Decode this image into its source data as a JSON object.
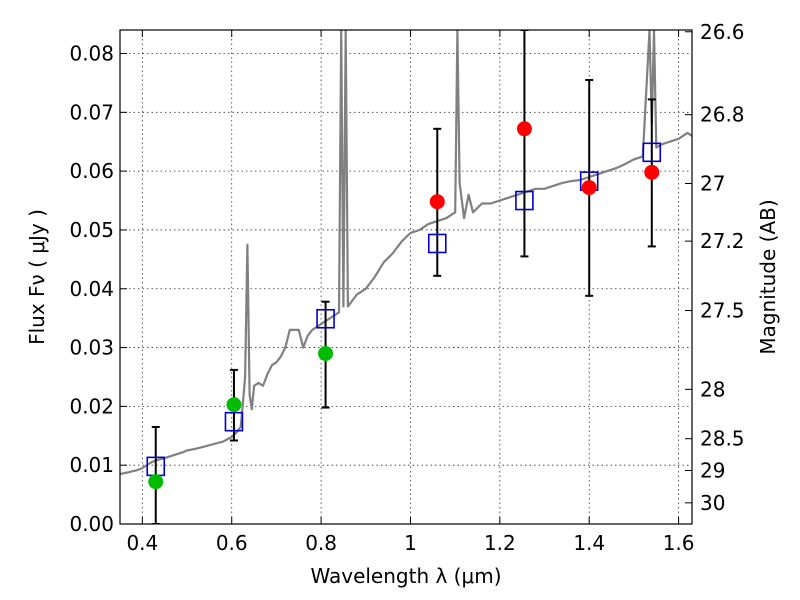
{
  "chart_data": {
    "type": "scatter",
    "xlabel": "Wavelength  λ (μm)",
    "ylabel": "Flux  Fν  ( μJy )",
    "y2label": "Magnitude (AB)",
    "xlim": [
      0.35,
      1.63
    ],
    "ylim": [
      0.0,
      0.084
    ],
    "x_ticks": [
      "0.4",
      "0.6",
      "0.8",
      "1",
      "1.2",
      "1.4",
      "1.6"
    ],
    "x_tick_values": [
      0.4,
      0.6,
      0.8,
      1.0,
      1.2,
      1.4,
      1.6
    ],
    "y_ticks": [
      "0.00",
      "0.01",
      "0.02",
      "0.03",
      "0.04",
      "0.05",
      "0.06",
      "0.07",
      "0.08"
    ],
    "y_tick_values": [
      0.0,
      0.01,
      0.02,
      0.03,
      0.04,
      0.05,
      0.06,
      0.07,
      0.08
    ],
    "y2_ticks": [
      {
        "label": "26.6",
        "flux": 0.0837
      },
      {
        "label": "26.8",
        "flux": 0.0696
      },
      {
        "label": "27",
        "flux": 0.0579
      },
      {
        "label": "27.2",
        "flux": 0.0481
      },
      {
        "label": "27.5",
        "flux": 0.0363
      },
      {
        "label": "28",
        "flux": 0.0229
      },
      {
        "label": "28.5",
        "flux": 0.0145
      },
      {
        "label": "29",
        "flux": 0.0091
      },
      {
        "label": "30",
        "flux": 0.0036
      }
    ],
    "grid": true,
    "series": [
      {
        "kind": "sed-model-line",
        "color": "#808080",
        "x": [
          0.35,
          0.37,
          0.39,
          0.4,
          0.41,
          0.42,
          0.43,
          0.44,
          0.45,
          0.47,
          0.49,
          0.5,
          0.52,
          0.54,
          0.56,
          0.58,
          0.6,
          0.61,
          0.62,
          0.625,
          0.63,
          0.635,
          0.64,
          0.645,
          0.65,
          0.66,
          0.67,
          0.68,
          0.69,
          0.7,
          0.71,
          0.72,
          0.73,
          0.75,
          0.76,
          0.77,
          0.78,
          0.8,
          0.82,
          0.84,
          0.845,
          0.85,
          0.855,
          0.86,
          0.87,
          0.88,
          0.9,
          0.92,
          0.94,
          0.96,
          0.98,
          1.0,
          1.02,
          1.04,
          1.06,
          1.08,
          1.1,
          1.105,
          1.11,
          1.12,
          1.13,
          1.14,
          1.16,
          1.18,
          1.2,
          1.22,
          1.24,
          1.26,
          1.28,
          1.3,
          1.32,
          1.34,
          1.36,
          1.38,
          1.4,
          1.42,
          1.44,
          1.46,
          1.48,
          1.5,
          1.52,
          1.535,
          1.54,
          1.545,
          1.55,
          1.56,
          1.58,
          1.6,
          1.62,
          1.63
        ],
        "y": [
          0.0085,
          0.0088,
          0.0092,
          0.0095,
          0.01,
          0.0105,
          0.0108,
          0.011,
          0.0112,
          0.0117,
          0.0122,
          0.0125,
          0.0128,
          0.0132,
          0.0136,
          0.014,
          0.0148,
          0.0155,
          0.0165,
          0.0205,
          0.025,
          0.0475,
          0.022,
          0.0195,
          0.0235,
          0.024,
          0.0235,
          0.0255,
          0.027,
          0.0275,
          0.0285,
          0.03,
          0.033,
          0.033,
          0.03,
          0.032,
          0.033,
          0.034,
          0.035,
          0.036,
          0.084,
          0.037,
          0.084,
          0.037,
          0.038,
          0.039,
          0.04,
          0.042,
          0.0445,
          0.046,
          0.048,
          0.0495,
          0.05,
          0.051,
          0.0515,
          0.052,
          0.053,
          0.084,
          0.058,
          0.052,
          0.056,
          0.053,
          0.0545,
          0.0545,
          0.055,
          0.0555,
          0.056,
          0.0565,
          0.057,
          0.057,
          0.0575,
          0.058,
          0.0583,
          0.0585,
          0.059,
          0.0595,
          0.06,
          0.0605,
          0.0612,
          0.062,
          0.0625,
          0.084,
          0.068,
          0.084,
          0.064,
          0.0645,
          0.065,
          0.0655,
          0.0665,
          0.066
        ]
      },
      {
        "kind": "errorbars",
        "color": "#000000",
        "x": [
          0.43,
          0.605,
          0.81,
          1.06,
          1.255,
          1.4,
          1.54
        ],
        "ylow": [
          0.0,
          0.0142,
          0.0198,
          0.0422,
          0.0455,
          0.0388,
          0.0472
        ],
        "yhigh": [
          0.0165,
          0.0262,
          0.0378,
          0.0672,
          0.084,
          0.0755,
          0.0722
        ]
      },
      {
        "kind": "model-fluxes",
        "marker": "open-square",
        "color": "#0000cc",
        "x": [
          0.43,
          0.605,
          0.81,
          1.06,
          1.255,
          1.4,
          1.54
        ],
        "y": [
          0.0098,
          0.0174,
          0.0349,
          0.0477,
          0.055,
          0.0583,
          0.0632
        ]
      },
      {
        "kind": "observed-optical",
        "marker": "filled-circle",
        "color": "#00bb00",
        "x": [
          0.43,
          0.605,
          0.81
        ],
        "y": [
          0.0072,
          0.0203,
          0.029
        ]
      },
      {
        "kind": "observed-nir",
        "marker": "filled-circle",
        "color": "#ff0000",
        "x": [
          1.06,
          1.255,
          1.4,
          1.54
        ],
        "y": [
          0.0548,
          0.0672,
          0.0572,
          0.0598
        ]
      }
    ]
  }
}
